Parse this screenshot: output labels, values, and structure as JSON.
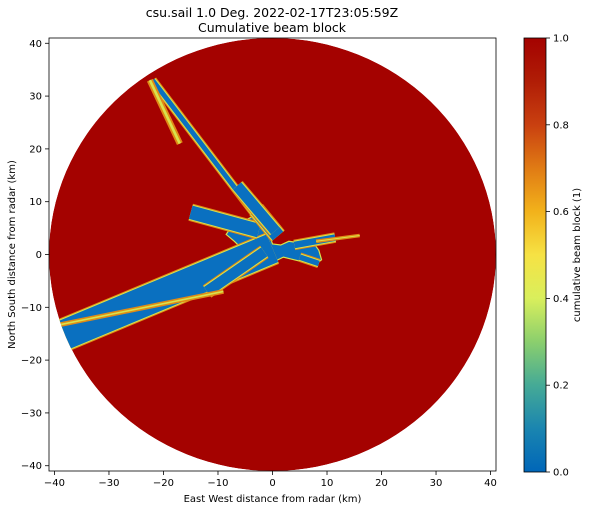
{
  "chart_data": {
    "type": "heatmap",
    "title": "csu.sail 1.0 Deg. 2022-02-17T23:05:59Z",
    "subtitle": "Cumulative beam block",
    "xlabel": "East West distance from radar (km)",
    "ylabel": "North South distance from radar (km)",
    "xlim": [
      -41,
      41
    ],
    "ylim": [
      -41,
      41
    ],
    "x_ticks": [
      -40,
      -30,
      -20,
      -10,
      0,
      10,
      20,
      30,
      40
    ],
    "y_ticks": [
      -40,
      -30,
      -20,
      -10,
      0,
      10,
      20,
      30,
      40
    ],
    "x_tick_labels": [
      "−40",
      "−30",
      "−20",
      "−10",
      "0",
      "10",
      "20",
      "30",
      "40"
    ],
    "y_tick_labels": [
      "−40",
      "−30",
      "−20",
      "−10",
      "0",
      "10",
      "20",
      "30",
      "40"
    ],
    "grid": false,
    "radar_range_km": 41,
    "colorbar": {
      "label": "cumulative beam block (1)",
      "range": [
        0.0,
        1.0
      ],
      "ticks": [
        0.0,
        0.2,
        0.4,
        0.6,
        0.8,
        1.0
      ],
      "tick_labels": [
        "0.0",
        "0.2",
        "0.4",
        "0.6",
        "0.8",
        "1.0"
      ],
      "colormap": [
        "#0066b8",
        "#1a85b0",
        "#45aa96",
        "#8bcf6d",
        "#d9ef5c",
        "#f6e244",
        "#f2b21b",
        "#e07b14",
        "#c94010",
        "#b01d06",
        "#a40200"
      ]
    },
    "background_value": 1.0,
    "block_colors": {
      "fully_blocked": "#a40200",
      "unblocked": "#0a70c0",
      "edge_mid": "#d8e34c",
      "edge_high": "#e08a16"
    },
    "unblocked_core": [
      [
        0,
        2
      ],
      [
        1.5,
        1.8
      ],
      [
        3,
        2.5
      ],
      [
        5,
        2.2
      ],
      [
        7.5,
        2.3
      ],
      [
        8,
        1.5
      ],
      [
        8.5,
        0.8
      ],
      [
        9,
        -1
      ],
      [
        8,
        -1.8
      ],
      [
        6,
        -1.5
      ],
      [
        4,
        -1
      ],
      [
        2,
        -0.5
      ],
      [
        0,
        -1.5
      ],
      [
        -2,
        -1.2
      ],
      [
        -4,
        0.5
      ],
      [
        -6,
        1.5
      ],
      [
        -7,
        2.5
      ],
      [
        -8.5,
        3.8
      ],
      [
        -7.5,
        5.3
      ],
      [
        -5,
        6.5
      ],
      [
        -3,
        7.5
      ],
      [
        -2.5,
        6.5
      ],
      [
        -1,
        5
      ],
      [
        -0.5,
        3.5
      ]
    ],
    "blocked_sectors": [
      {
        "from": [
          -3.5,
          8
        ],
        "to": [
          -22,
          33
        ],
        "width_km": 0.9
      },
      {
        "from": [
          0,
          1.2
        ],
        "to": [
          -40,
          -16
        ],
        "width_km": 5.5
      },
      {
        "from": [
          -1.5,
          0.5
        ],
        "to": [
          -12,
          -7
        ],
        "width_km": 2.0
      },
      {
        "from": [
          -2.5,
          4.5
        ],
        "to": [
          -15,
          8
        ],
        "width_km": 2.5
      },
      {
        "from": [
          1,
          3.5
        ],
        "to": [
          -3,
          8.5
        ],
        "width_km": 2.5
      },
      {
        "from": [
          0.5,
          4.5
        ],
        "to": [
          -6.5,
          13
        ],
        "width_km": 2.0
      },
      {
        "from": [
          4,
          1.8
        ],
        "to": [
          11.5,
          3.2
        ],
        "width_km": 1.2
      },
      {
        "from": [
          5,
          -0.5
        ],
        "to": [
          8.5,
          -1.7
        ],
        "width_km": 1.0
      }
    ],
    "high_block_streaks": [
      {
        "from": [
          -17,
          21
        ],
        "to": [
          -22.5,
          33
        ],
        "width_km": 0.8
      },
      {
        "from": [
          8,
          2.5
        ],
        "to": [
          16,
          3.6
        ],
        "width_km": 0.3
      },
      {
        "from": [
          -9,
          -7
        ],
        "to": [
          -40,
          -13.5
        ],
        "width_km": 0.5
      }
    ]
  }
}
